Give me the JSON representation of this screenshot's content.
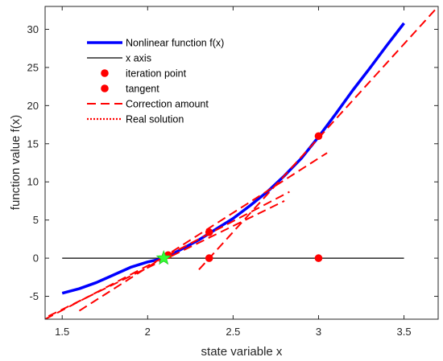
{
  "chart_data": {
    "type": "line",
    "title": "",
    "xlabel": "state variable x",
    "ylabel": "function value f(x)",
    "xlim": [
      1.4,
      3.7
    ],
    "ylim": [
      -8,
      33
    ],
    "xticks": [
      1.5,
      2,
      2.5,
      3,
      3.5
    ],
    "yticks": [
      -5,
      0,
      5,
      10,
      15,
      20,
      25,
      30
    ],
    "xtick_labels": [
      "1.5",
      "2",
      "2.5",
      "3",
      "3.5"
    ],
    "ytick_labels": [
      "-5",
      "0",
      "5",
      "10",
      "15",
      "20",
      "25",
      "30"
    ],
    "grid": false,
    "legend_position": "top-left",
    "legend": [
      {
        "label": "Nonlinear function f(x)",
        "style": "thick-solid",
        "color": "#0000ff"
      },
      {
        "label": "x axis",
        "style": "solid",
        "color": "#000000"
      },
      {
        "label": "iteration point",
        "style": "marker",
        "color": "#ff0000"
      },
      {
        "label": "tangent",
        "style": "marker",
        "color": "#ff0000"
      },
      {
        "label": "Correction amount",
        "style": "dashed",
        "color": "#ff0000"
      },
      {
        "label": "Real solution",
        "style": "dotted",
        "color": "#ff0000"
      }
    ],
    "function_curve": {
      "x": [
        1.5,
        1.6,
        1.7,
        1.8,
        1.9,
        2.0,
        2.1,
        2.2,
        2.3,
        2.4,
        2.5,
        2.6,
        2.7,
        2.8,
        2.9,
        3.0,
        3.1,
        3.2,
        3.3,
        3.4,
        3.5
      ],
      "y": [
        -4.6,
        -4.0,
        -3.2,
        -2.2,
        -1.2,
        -0.5,
        0.0,
        1.2,
        2.4,
        3.8,
        5.2,
        6.9,
        8.7,
        10.8,
        13.1,
        15.9,
        18.9,
        22.0,
        24.9,
        27.9,
        30.8
      ],
      "color": "#0000ff"
    },
    "x_axis_line": {
      "x": [
        1.5,
        3.5
      ],
      "y": [
        0,
        0
      ],
      "color": "#000000"
    },
    "iteration_points": {
      "x": [
        3.0,
        3.0,
        2.36,
        2.36,
        2.12
      ],
      "y": [
        16.0,
        0.0,
        0.0,
        3.4,
        0.4
      ],
      "color": "#ff0000"
    },
    "tangent_lines": [
      {
        "x": [
          2.3,
          3.7
        ],
        "y": [
          -1.5,
          33
        ]
      },
      {
        "x": [
          1.6,
          3.05
        ],
        "y": [
          -6.9,
          13.8
        ]
      },
      {
        "x": [
          1.4,
          2.83
        ],
        "y": [
          -8,
          8.7
        ]
      },
      {
        "x": [
          1.42,
          2.8
        ],
        "y": [
          -7.6,
          7.5
        ]
      }
    ],
    "real_solution": {
      "x": 2.094,
      "y": 0,
      "color": "#33ff33"
    }
  }
}
